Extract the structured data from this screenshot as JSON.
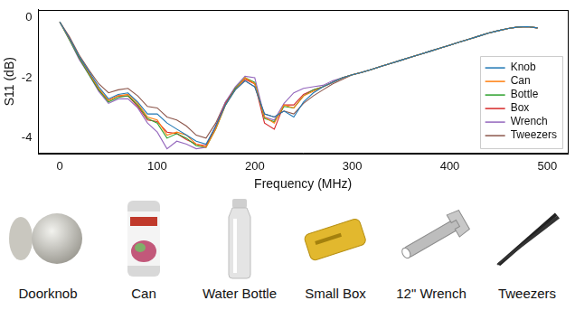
{
  "chart_data": {
    "type": "line",
    "x_label": "Frequency (MHz)",
    "y_label": "S11 (dB)",
    "x": [
      0,
      10,
      20,
      30,
      40,
      50,
      60,
      70,
      80,
      90,
      100,
      110,
      120,
      130,
      140,
      150,
      160,
      170,
      180,
      190,
      200,
      210,
      220,
      230,
      240,
      250,
      260,
      270,
      280,
      290,
      300,
      310,
      320,
      330,
      340,
      350,
      360,
      370,
      380,
      390,
      400,
      410,
      420,
      430,
      440,
      450,
      460,
      470,
      480,
      490
    ],
    "series": [
      {
        "name": "Knob",
        "color": "#1f77b4",
        "values": [
          -0.15,
          -0.7,
          -1.3,
          -1.8,
          -2.3,
          -2.7,
          -2.55,
          -2.5,
          -2.8,
          -3.2,
          -3.2,
          -3.5,
          -3.7,
          -3.9,
          -4.1,
          -4.2,
          -3.6,
          -2.9,
          -2.4,
          -2.1,
          -2.3,
          -3.2,
          -3.3,
          -3.1,
          -3.3,
          -2.8,
          -2.5,
          -2.3,
          -2.15,
          -2.0,
          -1.9,
          -1.82,
          -1.72,
          -1.62,
          -1.52,
          -1.42,
          -1.32,
          -1.22,
          -1.12,
          -1.02,
          -0.92,
          -0.82,
          -0.72,
          -0.62,
          -0.52,
          -0.44,
          -0.37,
          -0.32,
          -0.31,
          -0.35
        ]
      },
      {
        "name": "Can",
        "color": "#ff7f0e",
        "values": [
          -0.15,
          -0.72,
          -1.3,
          -1.85,
          -2.35,
          -2.75,
          -2.6,
          -2.55,
          -2.85,
          -3.3,
          -3.4,
          -3.9,
          -3.8,
          -3.9,
          -4.2,
          -4.3,
          -3.7,
          -2.9,
          -2.4,
          -2.0,
          -2.2,
          -3.3,
          -3.5,
          -2.9,
          -3.0,
          -2.6,
          -2.45,
          -2.3,
          -2.15,
          -2.0,
          -1.9,
          -1.82,
          -1.72,
          -1.62,
          -1.52,
          -1.42,
          -1.32,
          -1.22,
          -1.12,
          -1.02,
          -0.92,
          -0.82,
          -0.72,
          -0.62,
          -0.52,
          -0.44,
          -0.37,
          -0.32,
          -0.31,
          -0.35
        ]
      },
      {
        "name": "Bottle",
        "color": "#2ca02c",
        "values": [
          -0.15,
          -0.75,
          -1.35,
          -1.9,
          -2.4,
          -2.8,
          -2.65,
          -2.6,
          -2.9,
          -3.35,
          -3.5,
          -4.0,
          -3.85,
          -4.0,
          -4.25,
          -4.3,
          -3.7,
          -2.9,
          -2.35,
          -2.0,
          -2.15,
          -3.35,
          -3.45,
          -2.95,
          -3.0,
          -2.6,
          -2.4,
          -2.3,
          -2.15,
          -2.0,
          -1.9,
          -1.82,
          -1.72,
          -1.62,
          -1.52,
          -1.42,
          -1.32,
          -1.22,
          -1.12,
          -1.02,
          -0.92,
          -0.82,
          -0.72,
          -0.62,
          -0.52,
          -0.44,
          -0.37,
          -0.32,
          -0.31,
          -0.35
        ]
      },
      {
        "name": "Box",
        "color": "#d62728",
        "values": [
          -0.15,
          -0.7,
          -1.35,
          -1.85,
          -2.4,
          -2.75,
          -2.6,
          -2.6,
          -2.95,
          -3.4,
          -3.45,
          -3.8,
          -3.85,
          -4.05,
          -4.2,
          -4.25,
          -3.6,
          -2.85,
          -2.35,
          -2.05,
          -2.2,
          -3.5,
          -3.7,
          -2.9,
          -2.9,
          -2.55,
          -2.4,
          -2.3,
          -2.15,
          -2.0,
          -1.9,
          -1.82,
          -1.72,
          -1.62,
          -1.52,
          -1.42,
          -1.32,
          -1.22,
          -1.12,
          -1.02,
          -0.92,
          -0.82,
          -0.72,
          -0.62,
          -0.52,
          -0.44,
          -0.37,
          -0.32,
          -0.31,
          -0.35
        ]
      },
      {
        "name": "Wrench",
        "color": "#9467bd",
        "values": [
          -0.15,
          -0.75,
          -1.4,
          -1.9,
          -2.45,
          -2.85,
          -2.7,
          -2.7,
          -3.0,
          -3.5,
          -3.8,
          -4.35,
          -4.1,
          -4.2,
          -4.35,
          -4.3,
          -3.6,
          -2.8,
          -2.3,
          -1.95,
          -2.0,
          -3.3,
          -3.4,
          -2.85,
          -2.5,
          -2.35,
          -2.3,
          -2.25,
          -2.1,
          -2.0,
          -1.9,
          -1.82,
          -1.72,
          -1.62,
          -1.52,
          -1.42,
          -1.32,
          -1.22,
          -1.12,
          -1.02,
          -0.92,
          -0.82,
          -0.72,
          -0.62,
          -0.52,
          -0.44,
          -0.37,
          -0.32,
          -0.31,
          -0.35
        ]
      },
      {
        "name": "Tweezers",
        "color": "#8c564b",
        "values": [
          -0.15,
          -0.65,
          -1.25,
          -1.75,
          -2.2,
          -2.5,
          -2.4,
          -2.35,
          -2.6,
          -2.95,
          -3.0,
          -3.3,
          -3.4,
          -3.6,
          -3.9,
          -4.0,
          -3.5,
          -2.8,
          -2.4,
          -2.1,
          -2.3,
          -3.2,
          -3.3,
          -3.1,
          -3.2,
          -2.85,
          -2.6,
          -2.4,
          -2.2,
          -2.05,
          -1.9,
          -1.82,
          -1.72,
          -1.62,
          -1.52,
          -1.42,
          -1.32,
          -1.22,
          -1.12,
          -1.02,
          -0.92,
          -0.82,
          -0.72,
          -0.62,
          -0.52,
          -0.44,
          -0.37,
          -0.32,
          -0.31,
          -0.35
        ]
      }
    ],
    "xlim": [
      -22,
      521
    ],
    "xticks": [
      0,
      100,
      200,
      300,
      400,
      500
    ],
    "ylim": [
      -4.5,
      0.25
    ],
    "yticks": [
      -4,
      -2,
      0
    ],
    "grid": false,
    "legend": "lower right"
  },
  "objects": {
    "captions": [
      "Doorknob",
      "Can",
      "Water Bottle",
      "Small Box",
      "12\" Wrench",
      "Tweezers"
    ]
  }
}
